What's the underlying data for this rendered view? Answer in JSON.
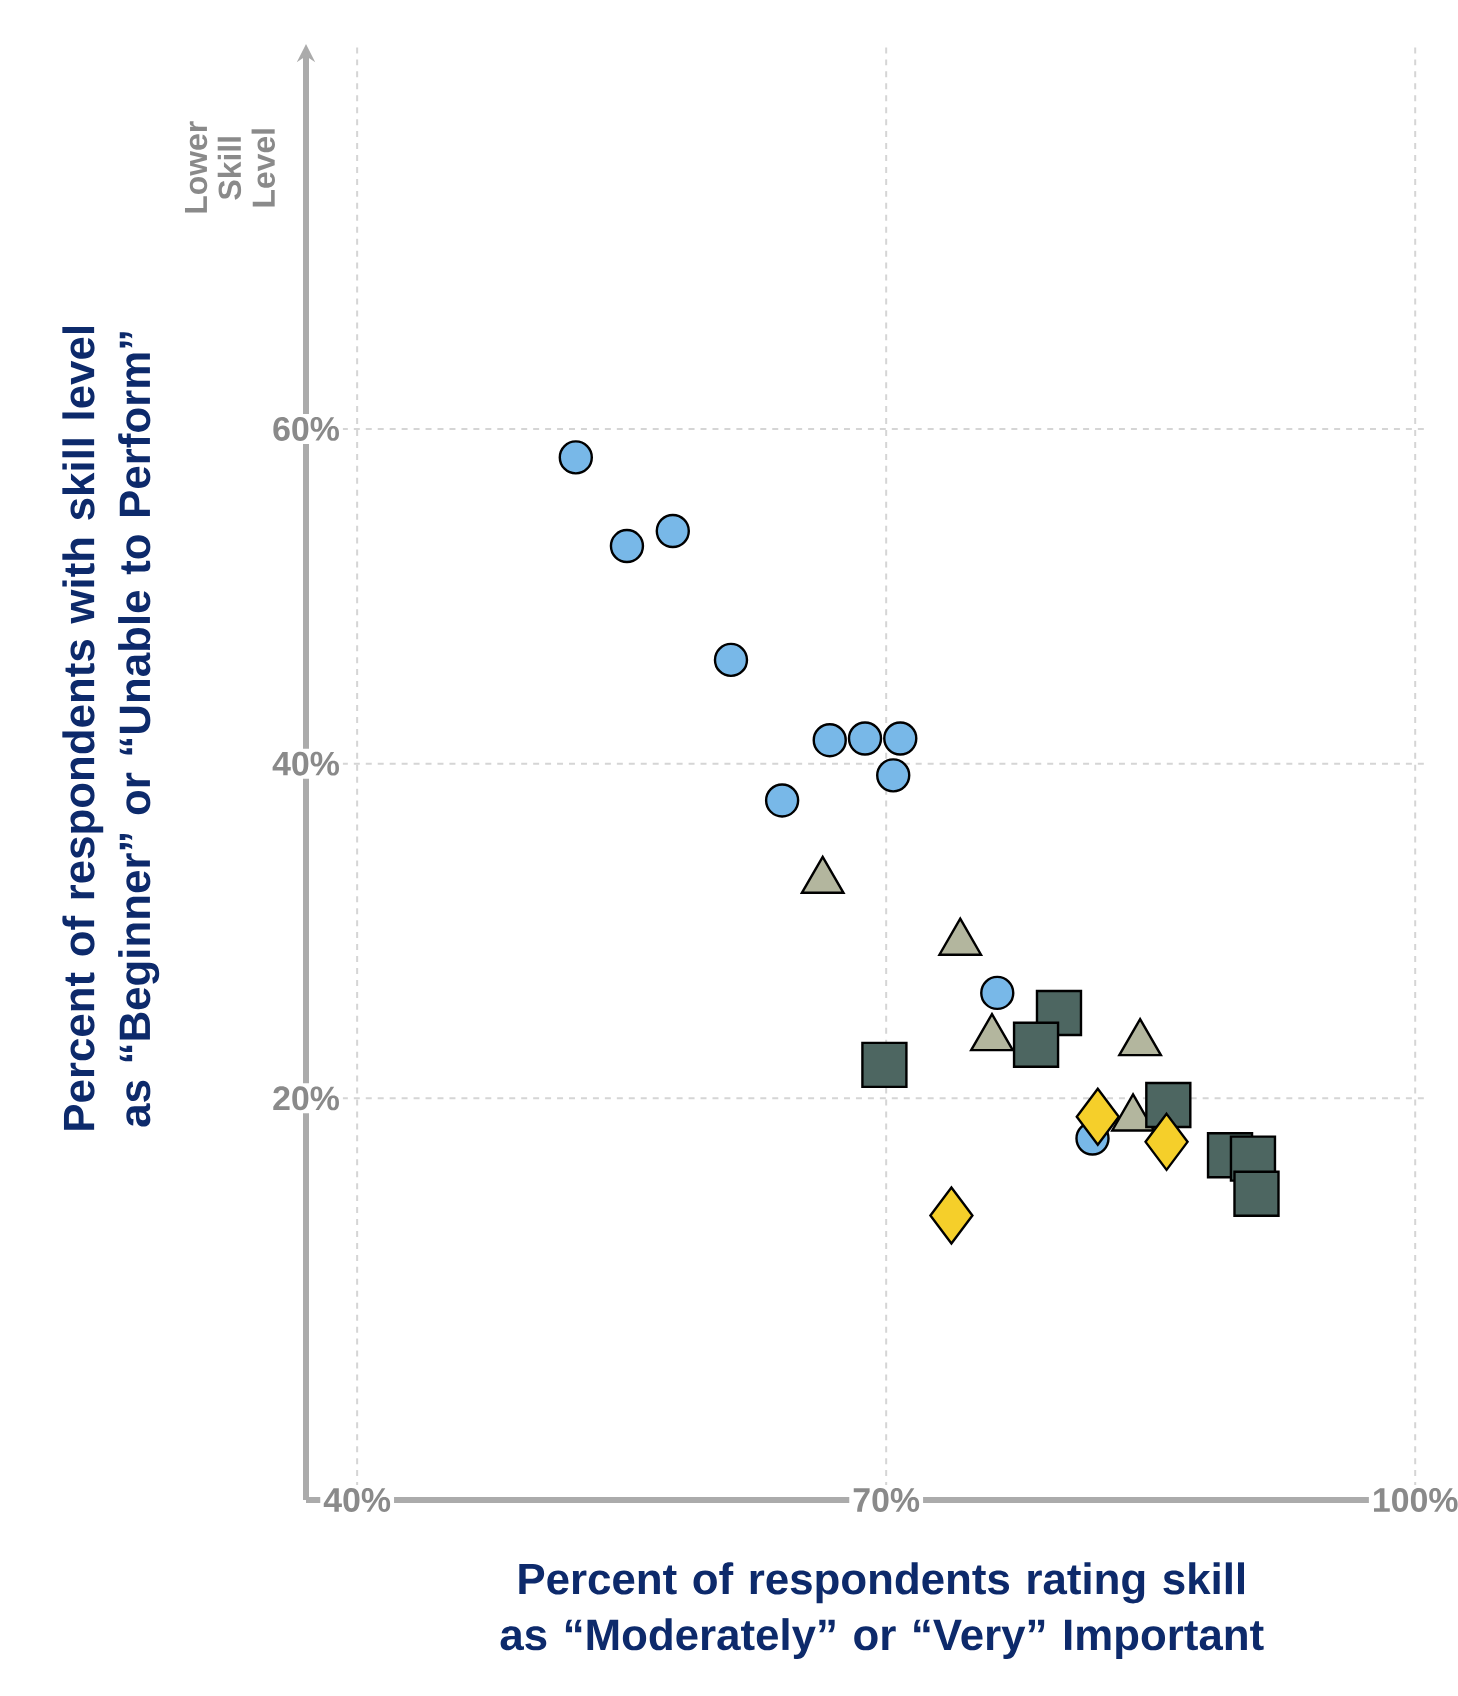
{
  "chart_data": {
    "type": "scatter",
    "xlabel": "Percent of respondents rating skill as “Moderately” or “Very” Important",
    "ylabel": "Percent of respondents with skill level as “Beginner” or “Unable to Perform”",
    "annotations": [
      "Lower Skill Level"
    ],
    "xlim": [
      37.1,
      100.5
    ],
    "ylim": [
      -4,
      83
    ],
    "xticks": [
      {
        "value": 40,
        "label": "40%"
      },
      {
        "value": 70,
        "label": "70%"
      },
      {
        "value": 100,
        "label": "100%"
      }
    ],
    "yticks": [
      {
        "value": 20,
        "label": "20%"
      },
      {
        "value": 40,
        "label": "40%"
      },
      {
        "value": 60,
        "label": "60%"
      }
    ],
    "grid": true,
    "series": [
      {
        "color": "#b3b69e",
        "marker": "triangle",
        "x": [
          66.4,
          74.2,
          76.0,
          84.4,
          84.0
        ],
        "values": [
          33.0,
          29.3,
          23.6,
          23.3,
          18.8
        ]
      },
      {
        "color": "#78b8e8",
        "marker": "circle",
        "x": [
          52.4,
          55.3,
          57.9,
          61.2,
          66.8,
          68.8,
          70.8,
          70.4,
          64.1,
          76.3,
          81.7
        ],
        "values": [
          58.3,
          53.0,
          53.9,
          46.2,
          41.4,
          41.5,
          41.5,
          39.3,
          37.8,
          26.3,
          17.6
        ]
      },
      {
        "color": "#4d6661",
        "marker": "square",
        "x": [
          69.9,
          79.8,
          78.5,
          86.0,
          89.5,
          90.8,
          91.0
        ],
        "values": [
          22.0,
          25.1,
          23.2,
          19.6,
          16.6,
          16.4,
          14.3
        ]
      },
      {
        "color": "#f5cf2a",
        "marker": "diamond",
        "x": [
          73.7,
          82.0,
          85.9
        ],
        "values": [
          13.0,
          18.9,
          17.4
        ]
      }
    ]
  }
}
